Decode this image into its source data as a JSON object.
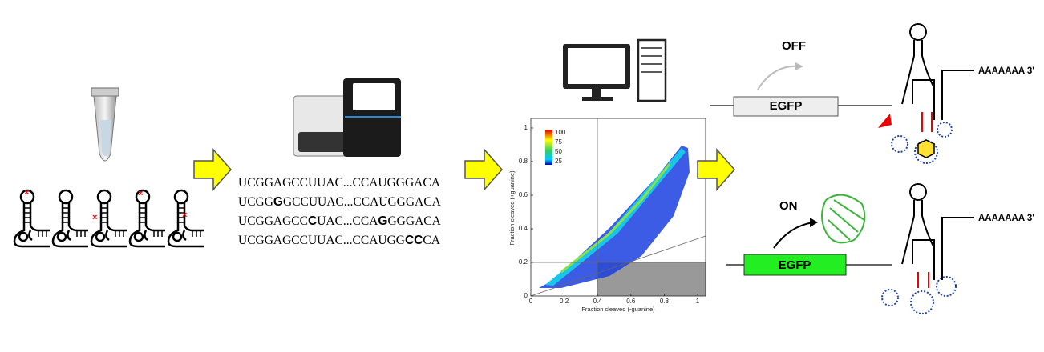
{
  "sequences": [
    [
      {
        "text": "UCGGAGCCUUAC...CCAUGGGACA"
      }
    ],
    [
      {
        "text": "UCGG"
      },
      {
        "text": "G",
        "bold": true
      },
      {
        "text": "GCCUUAC...CCAUGGGACA"
      }
    ],
    [
      {
        "text": "UCGGAGCC"
      },
      {
        "text": "C",
        "bold": true
      },
      {
        "text": "UAC...CCA"
      },
      {
        "text": "G",
        "bold": true
      },
      {
        "text": "GGGACA"
      }
    ],
    [
      {
        "text": "UCGGAGCCUUAC...CCAUGG"
      },
      {
        "text": "CC",
        "bold": true
      },
      {
        "text": "CA"
      }
    ]
  ],
  "plot": {
    "x_label": "Fraction cleaved (-guanine)",
    "y_label": "Fraction cleaved (+guanine)",
    "x_ticks": [
      "0",
      "0.2",
      "0.4",
      "0.6",
      "0.8",
      "1"
    ],
    "y_ticks": [
      "0",
      "0.2",
      "0.4",
      "0.6",
      "0.8",
      "1"
    ],
    "colorbar_ticks": [
      "100",
      "75",
      "50",
      "25"
    ]
  },
  "off": {
    "label": "OFF",
    "gene": "EGFP",
    "tail": "AAAAAAA 3'"
  },
  "on": {
    "label": "ON",
    "gene": "EGFP",
    "tail": "AAAAAAA 3'"
  }
}
